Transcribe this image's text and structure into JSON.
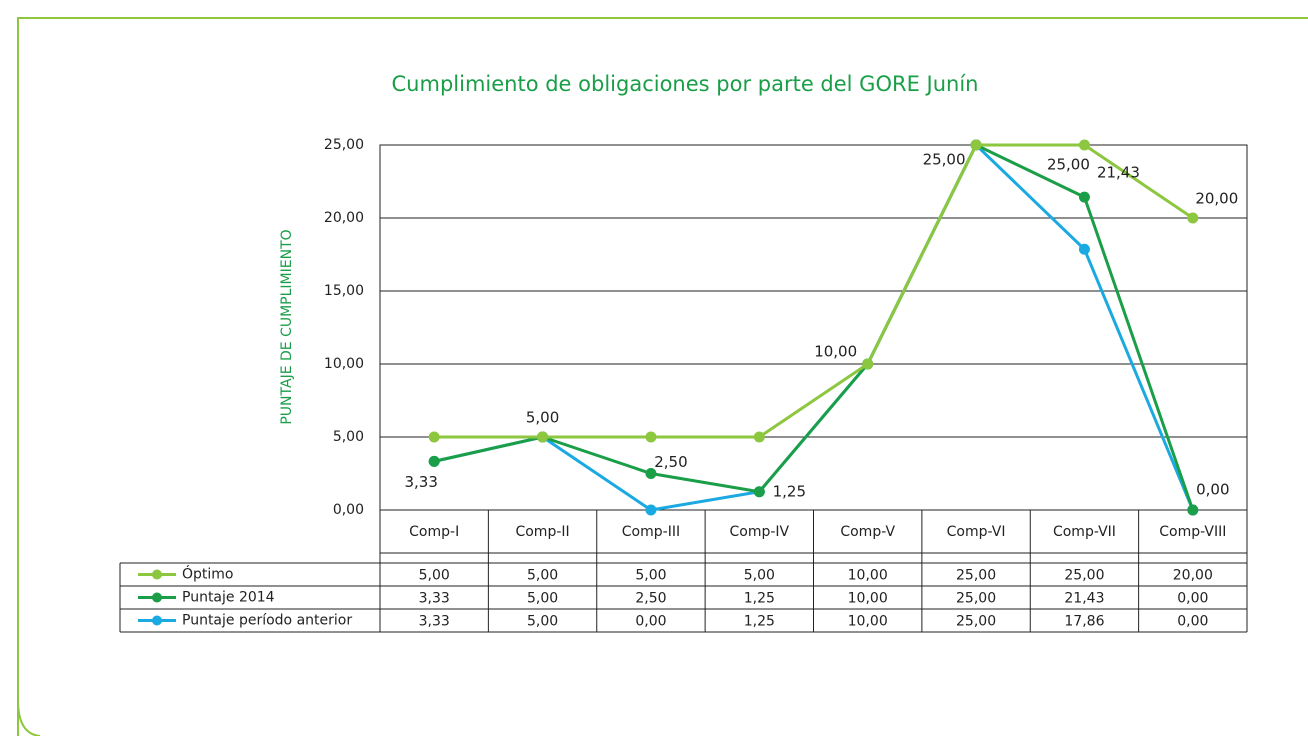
{
  "chart_data": {
    "type": "line",
    "title": "Cumplimiento de obligaciones por parte del GORE Junín",
    "y_label": "PUNTAJE DE CUMPLIMIENTO",
    "categories": [
      "Comp-I",
      "Comp-II",
      "Comp-III",
      "Comp-IV",
      "Comp-V",
      "Comp-VI",
      "Comp-VII",
      "Comp-VIII"
    ],
    "series": [
      {
        "name": "Óptimo",
        "color": "#8dc63f",
        "values": [
          5,
          5,
          5,
          5,
          10,
          25,
          25,
          20
        ],
        "value_labels": [
          "5,00",
          "5,00",
          "5,00",
          "5,00",
          "10,00",
          "25,00",
          "25,00",
          "20,00"
        ]
      },
      {
        "name": "Puntaje 2014",
        "color": "#1a9e48",
        "values": [
          3.33,
          5,
          2.5,
          1.25,
          10,
          25,
          21.43,
          0
        ],
        "value_labels": [
          "3,33",
          "5,00",
          "2,50",
          "1,25",
          "10,00",
          "25,00",
          "21,43",
          "0,00"
        ]
      },
      {
        "name": "Puntaje período anterior",
        "color": "#1ba9e1",
        "values": [
          3.33,
          5,
          0,
          1.25,
          10,
          25,
          17.86,
          0
        ],
        "value_labels": [
          "3,33",
          "5,00",
          "0,00",
          "1,25",
          "10,00",
          "25,00",
          "17,86",
          "0,00"
        ]
      }
    ],
    "ylim": [
      0,
      25
    ],
    "yticks": [
      {
        "value": 0,
        "label": "0,00"
      },
      {
        "value": 5,
        "label": "5,00"
      },
      {
        "value": 10,
        "label": "10,00"
      },
      {
        "value": 15,
        "label": "15,00"
      },
      {
        "value": 20,
        "label": "20,00"
      },
      {
        "value": 25,
        "label": "25,00"
      }
    ],
    "grid": true
  }
}
